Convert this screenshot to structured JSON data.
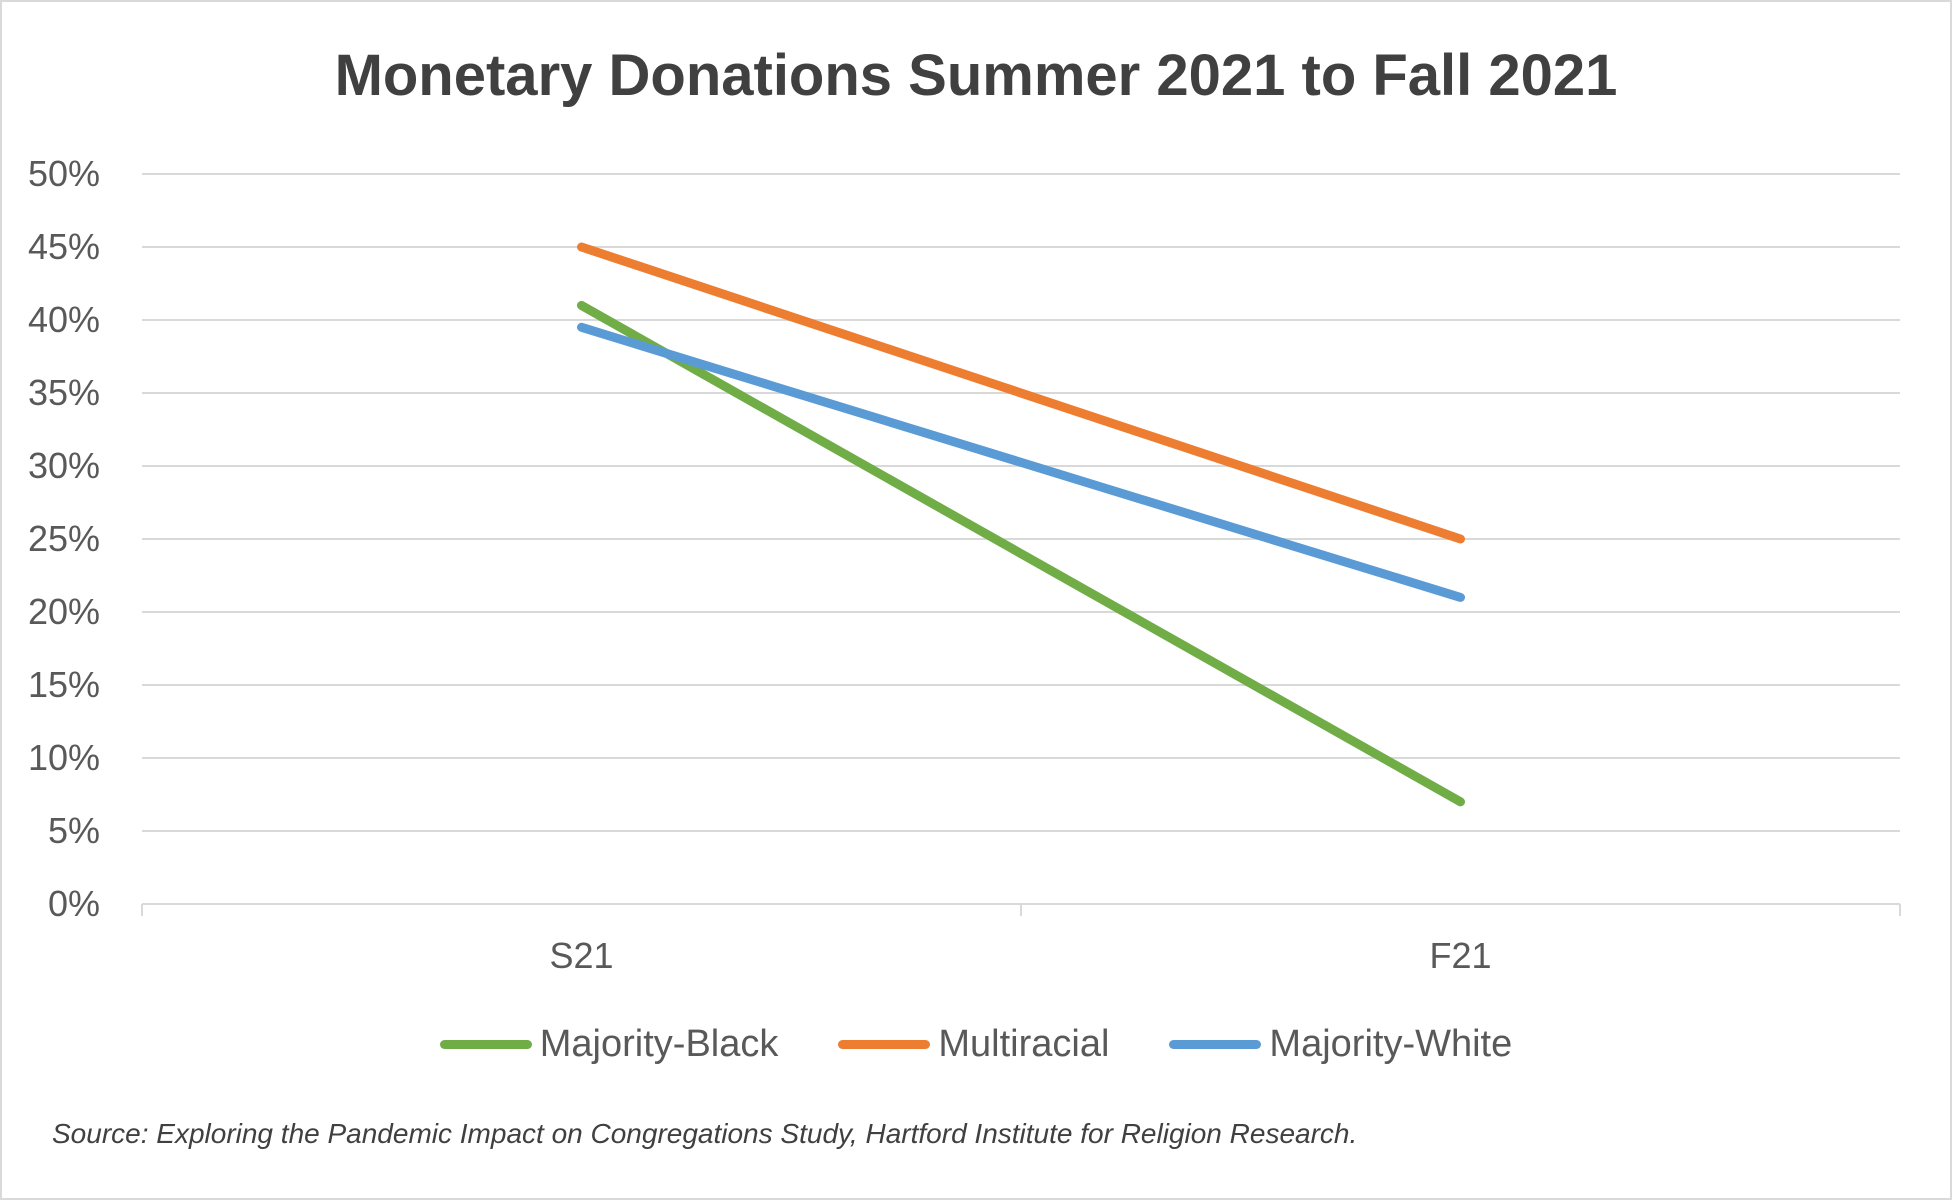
{
  "chart_data": {
    "type": "line",
    "title": "Monetary Donations Summer 2021 to Fall 2021",
    "categories": [
      "S21",
      "F21"
    ],
    "series": [
      {
        "name": "Majority-Black",
        "values": [
          41,
          7
        ],
        "color": "#70ad47"
      },
      {
        "name": "Multiracial",
        "values": [
          45,
          25
        ],
        "color": "#ed7d31"
      },
      {
        "name": "Majority-White",
        "values": [
          39.5,
          21
        ],
        "color": "#5b9bd5"
      }
    ],
    "yticks": [
      "0%",
      "5%",
      "10%",
      "15%",
      "20%",
      "25%",
      "30%",
      "35%",
      "40%",
      "45%",
      "50%"
    ],
    "ylim": [
      0,
      50
    ],
    "xlabel": "",
    "ylabel": "",
    "grid": true,
    "legend_position": "bottom"
  },
  "source_note": "Source: Exploring the Pandemic Impact on Congregations Study, Hartford Institute for Religion Research."
}
